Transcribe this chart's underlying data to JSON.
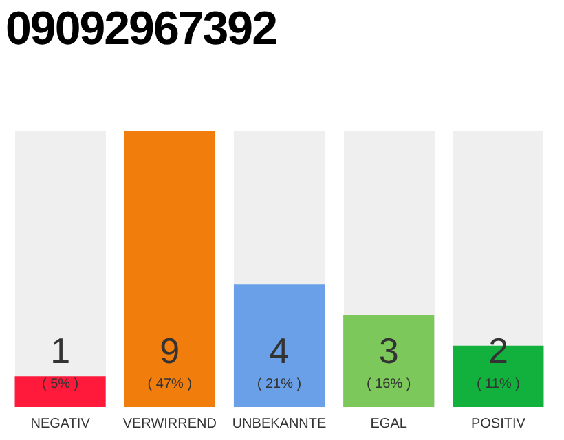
{
  "chart_data": {
    "type": "bar",
    "title": "09092967392",
    "categories": [
      "NEGATIV",
      "VERWIRREND",
      "UNBEKANNTE",
      "EGAL",
      "POSITIV"
    ],
    "values": [
      1,
      9,
      4,
      3,
      2
    ],
    "colors": [
      "#ff1a3c",
      "#f07d0c",
      "#6aa0e8",
      "#7dc85a",
      "#12b03c"
    ],
    "value_labels": [
      "1\n( 5% )",
      "9\n( 47% )",
      "4\n( 21% )",
      "3\n( 16% )",
      "2\n( 11% )"
    ],
    "tick_labels": "x",
    "grid": false,
    "legend": false
  }
}
